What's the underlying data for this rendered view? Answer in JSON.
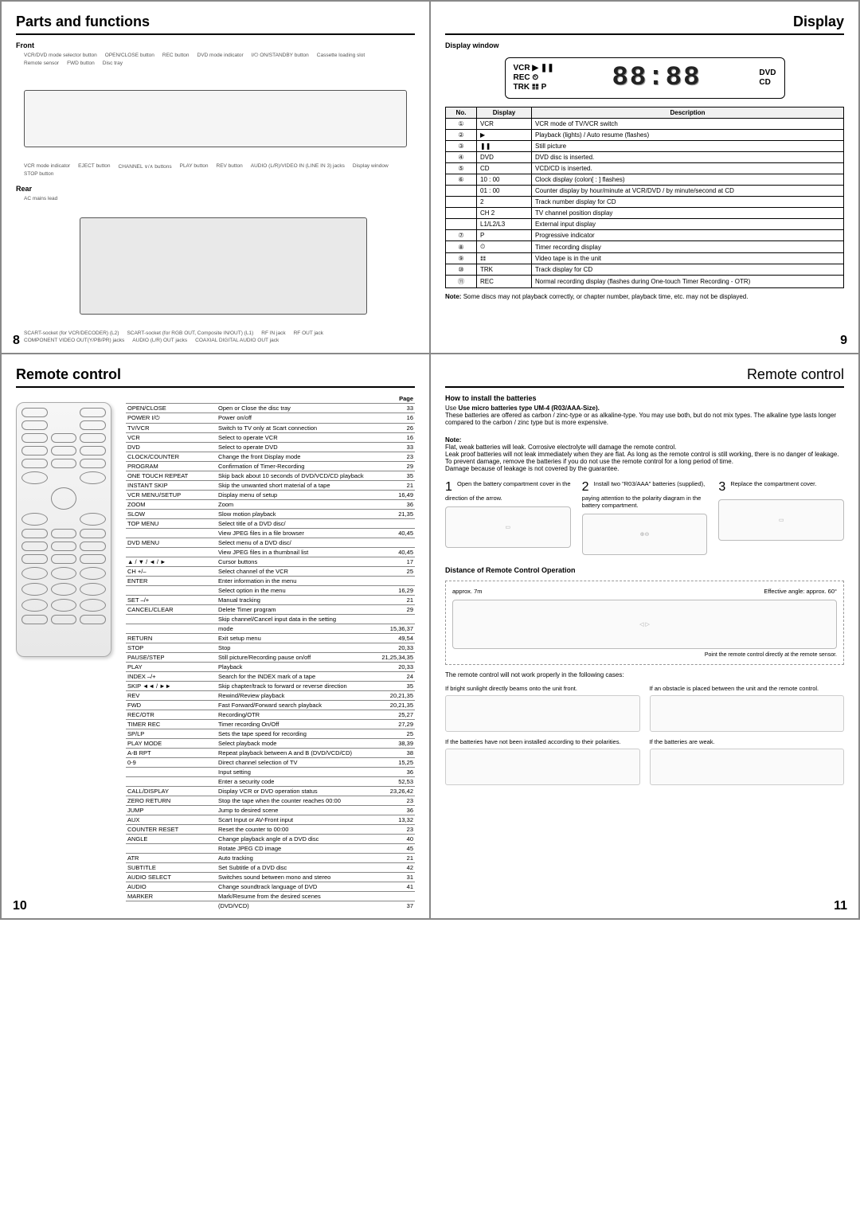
{
  "page8": {
    "title": "Parts and functions",
    "front_label": "Front",
    "rear_label": "Rear",
    "pagenum": "8",
    "front_callouts": [
      "VCR/DVD mode selector button",
      "OPEN/CLOSE button",
      "REC button",
      "DVD mode indicator",
      "I/⏻ ON/STANDBY button",
      "Cassette loading slot",
      "Remote sensor",
      "FWD button",
      "Disc tray",
      "VCR mode indicator",
      "EJECT button",
      "CHANNEL ∨/∧ buttons",
      "PLAY button",
      "REV button",
      "AUDIO (L/R)/VIDEO IN (LINE IN 3) jacks",
      "Display window",
      "STOP button"
    ],
    "rear_callouts": [
      "AC mains lead",
      "SCART-socket (for VCR/DECODER) (L2)",
      "SCART-socket (for RGB OUT, Composite IN/OUT) (L1)",
      "RF IN jack",
      "RF OUT jack",
      "COMPONENT VIDEO OUT(Y/PB/PR) jacks",
      "AUDIO (L/R) OUT jacks",
      "COAXIAL DIGITAL AUDIO OUT jack"
    ]
  },
  "page9": {
    "title": "Display",
    "subhead": "Display window",
    "pagenum": "9",
    "segment_text": "88:88",
    "segment_left": "VCR ▶ ❚❚\nREC ⏲\nTRK 𝌮 P",
    "segment_right": "DVD\nCD",
    "table_headers": {
      "no": "No.",
      "display": "Display",
      "desc": "Description"
    },
    "rows": [
      {
        "no": "①",
        "disp": "VCR",
        "desc": "VCR mode of TV/VCR switch"
      },
      {
        "no": "②",
        "disp": "▶",
        "desc": "Playback (lights) / Auto resume (flashes)"
      },
      {
        "no": "③",
        "disp": "❚❚",
        "desc": "Still picture"
      },
      {
        "no": "④",
        "disp": "DVD",
        "desc": "DVD disc is inserted."
      },
      {
        "no": "⑤",
        "disp": "CD",
        "desc": "VCD/CD is inserted."
      },
      {
        "no": "⑥",
        "disp": "10 : 00",
        "desc": "Clock display (colon[ : ] flashes)"
      },
      {
        "no": "",
        "disp": "01 : 00",
        "desc": "Counter display by hour/minute at VCR/DVD / by minute/second at CD"
      },
      {
        "no": "",
        "disp": "2",
        "desc": "Track number display for CD"
      },
      {
        "no": "",
        "disp": "CH 2",
        "desc": "TV channel position display"
      },
      {
        "no": "",
        "disp": "L1/L2/L3",
        "desc": "External input display"
      },
      {
        "no": "⑦",
        "disp": "P",
        "desc": "Progressive indicator"
      },
      {
        "no": "⑧",
        "disp": "⏲",
        "desc": "Timer recording display"
      },
      {
        "no": "⑨",
        "disp": "𝌮",
        "desc": "Video tape is in the unit"
      },
      {
        "no": "⑩",
        "disp": "TRK",
        "desc": "Track display for CD"
      },
      {
        "no": "⑪",
        "disp": "REC",
        "desc": "Normal recording display (flashes during One-touch Timer Recording - OTR)"
      }
    ],
    "note_label": "Note:",
    "note_text": "Some discs may not playback correctly, or chapter number, playback time, etc. may not be displayed."
  },
  "page10": {
    "title": "Remote control",
    "pagenum": "10",
    "page_header": "Page",
    "functions": [
      {
        "btn": "OPEN/CLOSE",
        "desc": "Open or Close the disc tray",
        "page": "33"
      },
      {
        "btn": "POWER I/⏻",
        "desc": "Power on/off",
        "page": "16"
      },
      {
        "btn": "TV/VCR",
        "desc": "Switch to TV only at Scart connection",
        "page": "26"
      },
      {
        "btn": "VCR",
        "desc": "Select to operate VCR",
        "page": "16"
      },
      {
        "btn": "DVD",
        "desc": "Select to operate DVD",
        "page": "33"
      },
      {
        "btn": "CLOCK/COUNTER",
        "desc": "Change the front Display mode",
        "page": "23"
      },
      {
        "btn": "PROGRAM",
        "desc": "Confirmation of Timer-Recording",
        "page": "29"
      },
      {
        "btn": "ONE TOUCH REPEAT",
        "desc": "Skip back about 10 seconds of DVD/VCD/CD playback",
        "page": "35"
      },
      {
        "btn": "INSTANT SKIP",
        "desc": "Skip the unwanted short material of a tape",
        "page": "21"
      },
      {
        "btn": "VCR MENU/SETUP",
        "desc": "Display menu of setup",
        "page": "16,49"
      },
      {
        "btn": "ZOOM",
        "desc": "Zoom",
        "page": "36"
      },
      {
        "btn": "SLOW",
        "desc": "Slow motion playback",
        "page": "21,35"
      },
      {
        "btn": "TOP MENU",
        "desc": "Select title of a DVD disc/",
        "page": ""
      },
      {
        "btn": "",
        "desc": "View JPEG files in a file browser",
        "page": "40,45"
      },
      {
        "btn": "DVD MENU",
        "desc": "Select menu of a DVD disc/",
        "page": ""
      },
      {
        "btn": "",
        "desc": "View JPEG files in a thumbnail list",
        "page": "40,45"
      },
      {
        "btn": "▲ / ▼ / ◄ / ►",
        "desc": "Cursor buttons",
        "page": "17"
      },
      {
        "btn": "CH +/–",
        "desc": "Select channel of the VCR",
        "page": "25"
      },
      {
        "btn": "ENTER",
        "desc": "Enter information in the menu",
        "page": ""
      },
      {
        "btn": "",
        "desc": "Select option in the menu",
        "page": "16,29"
      },
      {
        "btn": "SET –/+",
        "desc": "Manual tracking",
        "page": "21"
      },
      {
        "btn": "CANCEL/CLEAR",
        "desc": "Delete Timer program",
        "page": "29"
      },
      {
        "btn": "",
        "desc": "Skip channel/Cancel input data in the setting",
        "page": ""
      },
      {
        "btn": "",
        "desc": "mode",
        "page": "15,36,37"
      },
      {
        "btn": "RETURN",
        "desc": "Exit setup menu",
        "page": "49,54"
      },
      {
        "btn": "STOP",
        "desc": "Stop",
        "page": "20,33"
      },
      {
        "btn": "PAUSE/STEP",
        "desc": "Still picture/Recording pause on/off",
        "page": "21,25,34,35"
      },
      {
        "btn": "PLAY",
        "desc": "Playback",
        "page": "20,33"
      },
      {
        "btn": "INDEX –/+",
        "desc": "Search for the INDEX mark of a tape",
        "page": "24"
      },
      {
        "btn": "SKIP ◄◄ / ►►",
        "desc": "Skip chapter/track to forward or reverse direction",
        "page": "35"
      },
      {
        "btn": "REV",
        "desc": "Rewind/Review playback",
        "page": "20,21,35"
      },
      {
        "btn": "FWD",
        "desc": "Fast Forward/Forward search playback",
        "page": "20,21,35"
      },
      {
        "btn": "REC/OTR",
        "desc": "Recording/OTR",
        "page": "25,27"
      },
      {
        "btn": "TIMER REC",
        "desc": "Timer recording On/Off",
        "page": "27,29"
      },
      {
        "btn": "SP/LP",
        "desc": "Sets the tape speed for recording",
        "page": "25"
      },
      {
        "btn": "PLAY MODE",
        "desc": "Select playback mode",
        "page": "38,39"
      },
      {
        "btn": "A-B RPT",
        "desc": "Repeat playback between A and B (DVD/VCD/CD)",
        "page": "38"
      },
      {
        "btn": "0-9",
        "desc": "Direct channel selection of TV",
        "page": "15,25"
      },
      {
        "btn": "",
        "desc": "Input setting",
        "page": "36"
      },
      {
        "btn": "",
        "desc": "Enter a security code",
        "page": "52,53"
      },
      {
        "btn": "CALL/DISPLAY",
        "desc": "Display VCR or DVD operation status",
        "page": "23,26,42"
      },
      {
        "btn": "ZERO RETURN",
        "desc": "Stop the tape when the counter reaches 00:00",
        "page": "23"
      },
      {
        "btn": "JUMP",
        "desc": "Jump to desired scene",
        "page": "36"
      },
      {
        "btn": "AUX",
        "desc": "Scart Input or AV-Front input",
        "page": "13,32"
      },
      {
        "btn": "COUNTER RESET",
        "desc": "Reset the counter to 00:00",
        "page": "23"
      },
      {
        "btn": "ANGLE",
        "desc": "Change playback angle of a DVD disc",
        "page": "40"
      },
      {
        "btn": "",
        "desc": "Rotate JPEG CD image",
        "page": "45"
      },
      {
        "btn": "ATR",
        "desc": "Auto tracking",
        "page": "21"
      },
      {
        "btn": "SUBTITLE",
        "desc": "Set Subtitle of a DVD disc",
        "page": "42"
      },
      {
        "btn": "AUDIO SELECT",
        "desc": "Switches sound between mono and stereo",
        "page": "31"
      },
      {
        "btn": "AUDIO",
        "desc": "Change soundtrack language of DVD",
        "page": "41"
      },
      {
        "btn": "MARKER",
        "desc": "Mark/Resume from the desired scenes",
        "page": ""
      },
      {
        "btn": "",
        "desc": "(DVD/VCD)",
        "page": "37"
      }
    ]
  },
  "page11": {
    "title": "Remote control",
    "pagenum": "11",
    "install_head": "How to install the batteries",
    "install_text1": "Use micro batteries type UM-4 (R03/AAA-Size).",
    "install_text2": "These batteries are offered as carbon / zinc-type or as alkaline-type. You may use both, but do not mix types. The alkaline type lasts longer compared to the carbon / zinc type but is more expensive.",
    "install_note_label": "Note:",
    "install_note": "Flat, weak batteries will leak. Corrosive electrolyte will damage the remote control.\nLeak proof batteries will not leak immediately when they are flat. As long as the remote control is still working, there is no danger of leakage. To prevent damage, remove the batteries if you do not use the remote control for a long period of time.\nDamage because of leakage is not covered by the guarantee.",
    "step1_num": "1",
    "step1": "Open the battery compartment cover in the direction of the arrow.",
    "step2_num": "2",
    "step2": "Install two \"R03/AAA\" batteries (supplied), paying attention to the polarity diagram in the battery compartment.",
    "step3_num": "3",
    "step3": "Replace the compartment cover.",
    "dist_head": "Distance of Remote Control Operation",
    "dist_approx": "approx. 7m",
    "dist_angle": "Effective angle: approx. 60°",
    "dist_point": "Point the remote control directly at the remote sensor.",
    "cases_intro": "The remote control will not work properly in the following cases:",
    "case1": "If bright sunlight directly beams onto the unit front.",
    "case2": "If an obstacle is placed between the unit and the remote control.",
    "case3": "If the batteries have not been installed according to their polarities.",
    "case4": "If the batteries are weak."
  }
}
